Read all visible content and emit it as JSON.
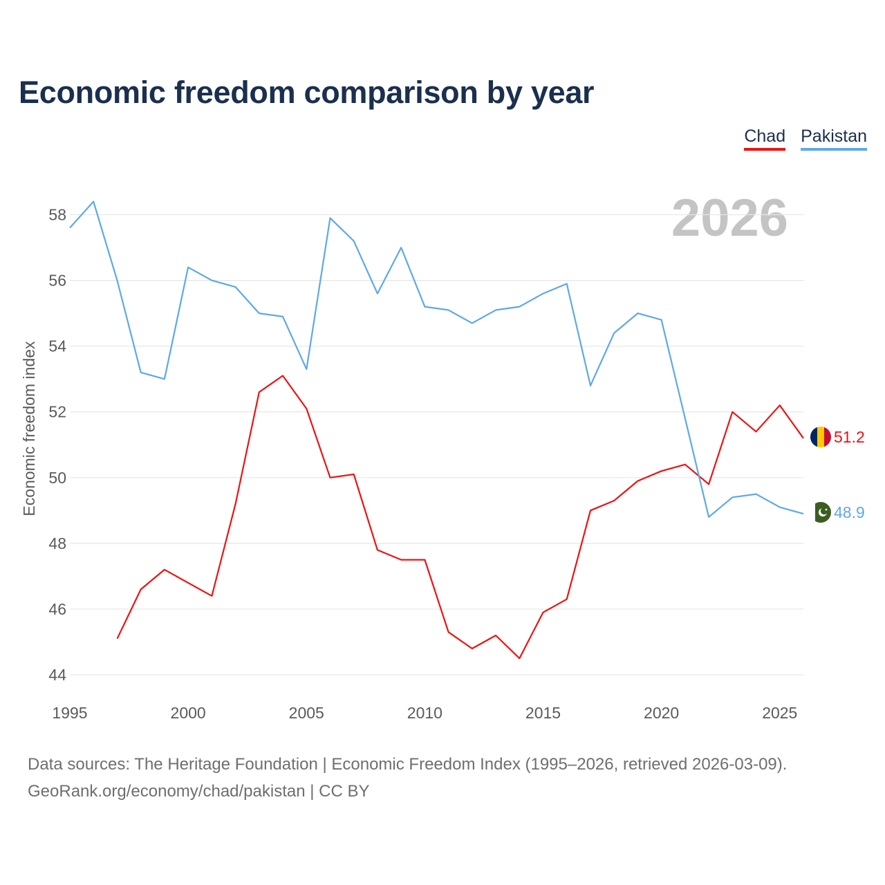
{
  "title": "Economic freedom comparison by year",
  "year_stamp": "2026",
  "legend": [
    {
      "label": "Chad",
      "color": "#ee1111"
    },
    {
      "label": "Pakistan",
      "color": "#5da8e8"
    }
  ],
  "footer": {
    "line1": "Data sources: The Heritage Foundation | Economic Freedom Index (1995–2026, retrieved 2026-03-09).",
    "line2": "GeoRank.org/economy/chad/pakistan | CC BY"
  },
  "chart_data": {
    "type": "line",
    "title": "Economic freedom comparison by year",
    "xlabel": "",
    "ylabel": "Economic freedom index",
    "xlim": [
      1995,
      2026
    ],
    "ylim": [
      44,
      59
    ],
    "xticks": [
      1995,
      2000,
      2005,
      2010,
      2015,
      2020,
      2025
    ],
    "yticks": [
      44,
      46,
      48,
      50,
      52,
      54,
      56,
      58
    ],
    "grid": true,
    "legend_position": "top-right",
    "series": [
      {
        "name": "Chad",
        "color": "#ee1111",
        "end_label": "51.2",
        "x": [
          1997,
          1998,
          1999,
          2000,
          2001,
          2002,
          2003,
          2004,
          2005,
          2006,
          2007,
          2008,
          2009,
          2010,
          2011,
          2012,
          2013,
          2014,
          2015,
          2016,
          2017,
          2018,
          2019,
          2020,
          2021,
          2022,
          2023,
          2024,
          2025,
          2026
        ],
        "values": [
          45.1,
          46.6,
          47.2,
          46.8,
          46.4,
          49.2,
          52.6,
          53.1,
          52.1,
          50.0,
          50.1,
          47.8,
          47.5,
          47.5,
          45.3,
          44.8,
          45.2,
          44.5,
          45.9,
          46.3,
          49.0,
          49.3,
          49.9,
          50.2,
          50.4,
          49.8,
          52.0,
          51.4,
          52.2,
          51.2
        ]
      },
      {
        "name": "Pakistan",
        "color": "#5da8e8",
        "end_label": "48.9",
        "x": [
          1995,
          1996,
          1997,
          1998,
          1999,
          2000,
          2001,
          2002,
          2003,
          2004,
          2005,
          2006,
          2007,
          2008,
          2009,
          2010,
          2011,
          2012,
          2013,
          2014,
          2015,
          2016,
          2017,
          2018,
          2019,
          2020,
          2021,
          2022,
          2023,
          2024,
          2025,
          2026
        ],
        "values": [
          57.6,
          58.4,
          56.0,
          53.2,
          53.0,
          56.4,
          56.0,
          55.8,
          55.0,
          54.9,
          53.3,
          57.9,
          57.2,
          55.6,
          57.0,
          55.2,
          55.1,
          54.7,
          55.1,
          55.2,
          55.6,
          55.9,
          52.8,
          54.4,
          55.0,
          54.8,
          51.8,
          48.8,
          49.4,
          49.5,
          49.1,
          48.9
        ]
      }
    ]
  }
}
